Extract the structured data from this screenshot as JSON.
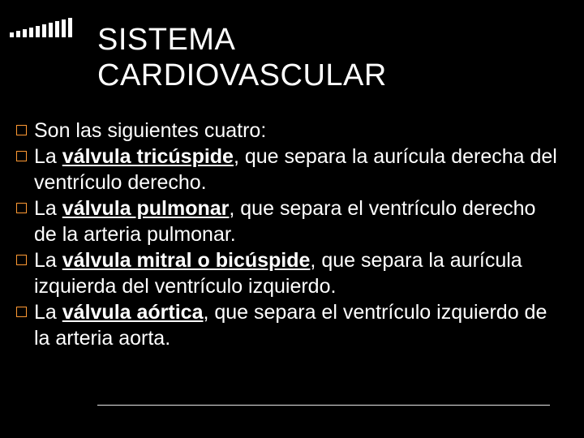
{
  "title_line1": "SISTEMA",
  "title_line2": "CARDIOVASCULAR",
  "bars": {
    "color": "#ffffff",
    "heights": [
      6,
      8,
      10,
      12,
      14,
      16,
      18,
      20,
      22,
      24
    ]
  },
  "bullet_border_color": "#ff9933",
  "text_color": "#ffffff",
  "background_color": "#000000",
  "items": [
    {
      "pre": "Son las siguientes cuatro:",
      "term": "",
      "post": ""
    },
    {
      "pre": "La ",
      "term": "válvula tricúspide",
      "post": ", que separa la aurícula derecha del ventrículo derecho."
    },
    {
      "pre": "La ",
      "term": "válvula pulmonar",
      "post": ", que separa el ventrículo derecho de la arteria pulmonar."
    },
    {
      "pre": "La ",
      "term": "válvula mitral o bicúspide",
      "post": ", que separa la aurícula izquierda del ventrículo izquierdo."
    },
    {
      "pre": "La ",
      "term": "válvula aórtica",
      "post": ", que separa el ventrículo izquierdo de la arteria aorta."
    }
  ]
}
